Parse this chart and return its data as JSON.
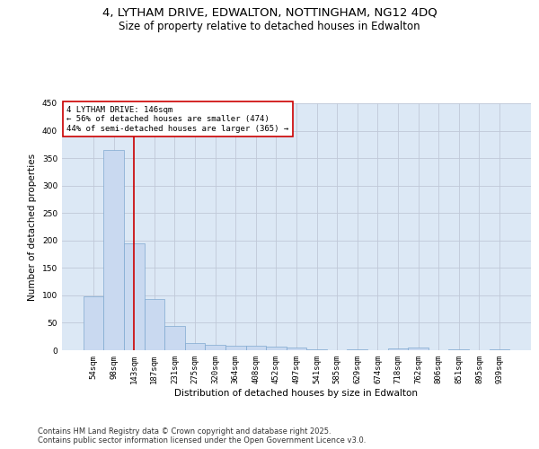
{
  "title_line1": "4, LYTHAM DRIVE, EDWALTON, NOTTINGHAM, NG12 4DQ",
  "title_line2": "Size of property relative to detached houses in Edwalton",
  "xlabel": "Distribution of detached houses by size in Edwalton",
  "ylabel": "Number of detached properties",
  "categories": [
    "54sqm",
    "98sqm",
    "143sqm",
    "187sqm",
    "231sqm",
    "275sqm",
    "320sqm",
    "364sqm",
    "408sqm",
    "452sqm",
    "497sqm",
    "541sqm",
    "585sqm",
    "629sqm",
    "674sqm",
    "718sqm",
    "762sqm",
    "806sqm",
    "851sqm",
    "895sqm",
    "939sqm"
  ],
  "values": [
    98,
    365,
    195,
    93,
    45,
    13,
    10,
    9,
    8,
    6,
    5,
    1,
    0,
    1,
    0,
    4,
    5,
    0,
    1,
    0,
    1
  ],
  "bar_color": "#c9d9f0",
  "bar_edge_color": "#7fa8d0",
  "grid_color": "#c0c8d8",
  "background_color": "#dce8f5",
  "vline_x": 2,
  "vline_color": "#cc0000",
  "annotation_text": "4 LYTHAM DRIVE: 146sqm\n← 56% of detached houses are smaller (474)\n44% of semi-detached houses are larger (365) →",
  "annotation_box_color": "#ffffff",
  "annotation_box_edge": "#cc0000",
  "ylim": [
    0,
    450
  ],
  "yticks": [
    0,
    50,
    100,
    150,
    200,
    250,
    300,
    350,
    400,
    450
  ],
  "footer": "Contains HM Land Registry data © Crown copyright and database right 2025.\nContains public sector information licensed under the Open Government Licence v3.0.",
  "title_fontsize": 9.5,
  "subtitle_fontsize": 8.5,
  "axis_label_fontsize": 7.5,
  "tick_fontsize": 6.5,
  "annotation_fontsize": 6.5,
  "footer_fontsize": 6.0
}
